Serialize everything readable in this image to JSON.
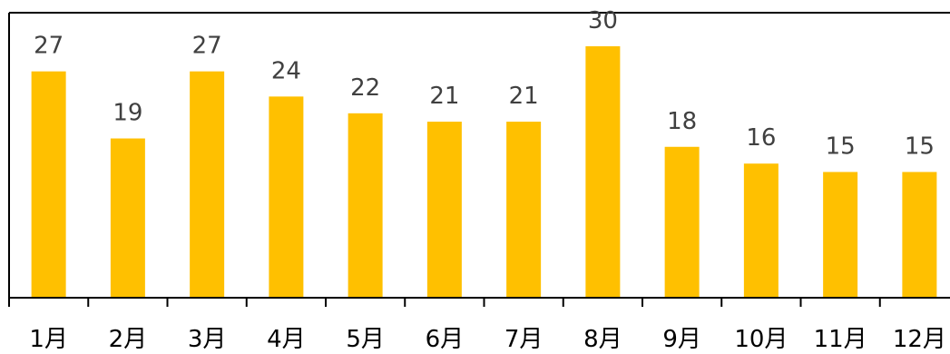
{
  "chart_data": {
    "type": "bar",
    "categories": [
      "1月",
      "2月",
      "3月",
      "4月",
      "5月",
      "6月",
      "7月",
      "8月",
      "9月",
      "10月",
      "11月",
      "12月"
    ],
    "values": [
      27,
      19,
      27,
      24,
      22,
      21,
      21,
      30,
      18,
      16,
      15,
      15
    ],
    "title": "",
    "xlabel": "",
    "ylabel": "",
    "ylim": [
      0,
      34
    ],
    "grid": false,
    "legend": "none",
    "colors": {
      "bar": "#ffc000",
      "label": "#404040",
      "axis": "#000000"
    }
  }
}
